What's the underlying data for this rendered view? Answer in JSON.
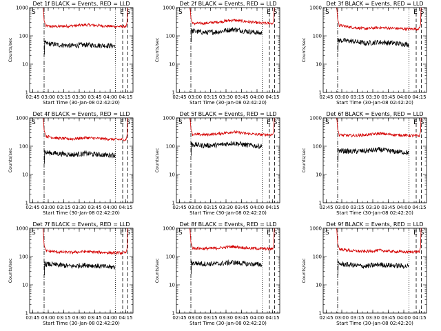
{
  "figure": {
    "common": {
      "xlabel": "Start Time (30-Jan-08 02:42:20)",
      "ylabel": "Counts/sec",
      "x_tick_labels": [
        "02:45",
        "03:00",
        "03:15",
        "03:30",
        "03:45",
        "04:00",
        "04:15"
      ],
      "y_tick_labels": [
        "1",
        "10",
        "100",
        "1000"
      ],
      "markers": [
        "S",
        "E",
        "S"
      ]
    }
  },
  "chart_data": [
    {
      "type": "line",
      "title": "Det 1f BLACK = Events, RED = LLD",
      "x_range": [
        "02:42",
        "04:22"
      ],
      "y_scale": "log",
      "ylim": [
        1,
        1000
      ],
      "series": [
        {
          "color": "#d40000",
          "values_approx": [
            220,
            215,
            225,
            245,
            230,
            215,
            215
          ]
        },
        {
          "color": "#000000",
          "values_approx": [
            55,
            48,
            45,
            48,
            46,
            44,
            45
          ]
        }
      ],
      "vlines": [
        {
          "time": "02:56",
          "style": "dash-dot"
        },
        {
          "time": "04:05",
          "style": "dotted"
        },
        {
          "time": "04:12",
          "style": "dashed"
        },
        {
          "time": "04:17",
          "style": "dashed"
        }
      ]
    },
    {
      "type": "line",
      "title": "Det 2f BLACK = Events, RED = LLD",
      "x_range": [
        "02:42",
        "04:22"
      ],
      "y_scale": "log",
      "ylim": [
        1,
        1000
      ],
      "series": [
        {
          "color": "#d40000",
          "values_approx": [
            270,
            280,
            310,
            360,
            320,
            280,
            280
          ]
        },
        {
          "color": "#000000",
          "values_approx": [
            150,
            130,
            140,
            170,
            145,
            125,
            120
          ]
        }
      ],
      "vlines": [
        {
          "time": "02:56",
          "style": "dash-dot"
        },
        {
          "time": "04:05",
          "style": "dotted"
        },
        {
          "time": "04:12",
          "style": "dashed"
        },
        {
          "time": "04:17",
          "style": "dashed"
        }
      ]
    },
    {
      "type": "line",
      "title": "Det 3f BLACK = Events, RED = LLD",
      "x_range": [
        "02:42",
        "04:22"
      ],
      "y_scale": "log",
      "ylim": [
        1,
        1000
      ],
      "series": [
        {
          "color": "#d40000",
          "values_approx": [
            240,
            200,
            180,
            195,
            185,
            175,
            180
          ]
        },
        {
          "color": "#000000",
          "values_approx": [
            70,
            65,
            55,
            60,
            55,
            50,
            52
          ]
        }
      ],
      "vlines": [
        {
          "time": "02:56",
          "style": "dash-dot"
        },
        {
          "time": "04:05",
          "style": "dotted"
        },
        {
          "time": "04:12",
          "style": "dashed"
        },
        {
          "time": "04:17",
          "style": "dashed"
        }
      ]
    },
    {
      "type": "line",
      "title": "Det 4f BLACK = Events, RED = LLD",
      "x_range": [
        "02:42",
        "04:22"
      ],
      "y_scale": "log",
      "ylim": [
        1,
        1000
      ],
      "series": [
        {
          "color": "#d40000",
          "values_approx": [
            230,
            190,
            180,
            200,
            185,
            175,
            170
          ]
        },
        {
          "color": "#000000",
          "values_approx": [
            60,
            55,
            50,
            55,
            50,
            48,
            50
          ]
        }
      ],
      "vlines": [
        {
          "time": "02:56",
          "style": "dash-dot"
        },
        {
          "time": "04:05",
          "style": "dotted"
        },
        {
          "time": "04:12",
          "style": "dashed"
        },
        {
          "time": "04:17",
          "style": "dashed"
        }
      ]
    },
    {
      "type": "line",
      "title": "Det 5f BLACK = Events, RED = LLD",
      "x_range": [
        "02:42",
        "04:22"
      ],
      "y_scale": "log",
      "ylim": [
        1,
        1000
      ],
      "series": [
        {
          "color": "#d40000",
          "values_approx": [
            260,
            255,
            275,
            320,
            280,
            255,
            255
          ]
        },
        {
          "color": "#000000",
          "values_approx": [
            115,
            105,
            110,
            130,
            110,
            100,
            98
          ]
        }
      ],
      "vlines": [
        {
          "time": "02:56",
          "style": "dash-dot"
        },
        {
          "time": "04:05",
          "style": "dotted"
        },
        {
          "time": "04:12",
          "style": "dashed"
        },
        {
          "time": "04:17",
          "style": "dashed"
        }
      ]
    },
    {
      "type": "line",
      "title": "Det 6f BLACK = Events, RED = LLD",
      "x_range": [
        "02:42",
        "04:22"
      ],
      "y_scale": "log",
      "ylim": [
        1,
        1000
      ],
      "series": [
        {
          "color": "#d40000",
          "values_approx": [
            250,
            235,
            250,
            280,
            255,
            240,
            230
          ]
        },
        {
          "color": "#000000",
          "values_approx": [
            70,
            65,
            68,
            75,
            65,
            60,
            58
          ]
        }
      ],
      "vlines": [
        {
          "time": "02:56",
          "style": "dash-dot"
        },
        {
          "time": "04:05",
          "style": "dotted"
        },
        {
          "time": "04:12",
          "style": "dashed"
        },
        {
          "time": "04:17",
          "style": "dashed"
        }
      ]
    },
    {
      "type": "line",
      "title": "Det 7f BLACK = Events, RED = LLD",
      "x_range": [
        "02:42",
        "04:22"
      ],
      "y_scale": "log",
      "ylim": [
        1,
        1000
      ],
      "series": [
        {
          "color": "#d40000",
          "values_approx": [
            160,
            145,
            140,
            150,
            140,
            135,
            135
          ]
        },
        {
          "color": "#000000",
          "values_approx": [
            55,
            50,
            45,
            50,
            45,
            42,
            42
          ]
        }
      ],
      "vlines": [
        {
          "time": "02:56",
          "style": "dash-dot"
        },
        {
          "time": "04:05",
          "style": "dotted"
        },
        {
          "time": "04:12",
          "style": "dashed"
        },
        {
          "time": "04:17",
          "style": "dashed"
        }
      ]
    },
    {
      "type": "line",
      "title": "Det 8f BLACK = Events, RED = LLD",
      "x_range": [
        "02:42",
        "04:22"
      ],
      "y_scale": "log",
      "ylim": [
        1,
        1000
      ],
      "series": [
        {
          "color": "#d40000",
          "values_approx": [
            200,
            190,
            200,
            225,
            200,
            190,
            185
          ]
        },
        {
          "color": "#000000",
          "values_approx": [
            60,
            55,
            55,
            62,
            55,
            52,
            50
          ]
        }
      ],
      "vlines": [
        {
          "time": "02:56",
          "style": "dash-dot"
        },
        {
          "time": "04:05",
          "style": "dotted"
        },
        {
          "time": "04:12",
          "style": "dashed"
        },
        {
          "time": "04:17",
          "style": "dashed"
        }
      ]
    },
    {
      "type": "line",
      "title": "Det 9f BLACK = Events, RED = LLD",
      "x_range": [
        "02:42",
        "04:22"
      ],
      "y_scale": "log",
      "ylim": [
        1,
        1000
      ],
      "series": [
        {
          "color": "#d40000",
          "values_approx": [
            185,
            160,
            150,
            165,
            150,
            145,
            150
          ]
        },
        {
          "color": "#000000",
          "values_approx": [
            55,
            50,
            45,
            52,
            48,
            45,
            45
          ]
        }
      ],
      "vlines": [
        {
          "time": "02:56",
          "style": "dash-dot"
        },
        {
          "time": "04:05",
          "style": "dotted"
        },
        {
          "time": "04:12",
          "style": "dashed"
        },
        {
          "time": "04:17",
          "style": "dashed"
        }
      ]
    }
  ]
}
